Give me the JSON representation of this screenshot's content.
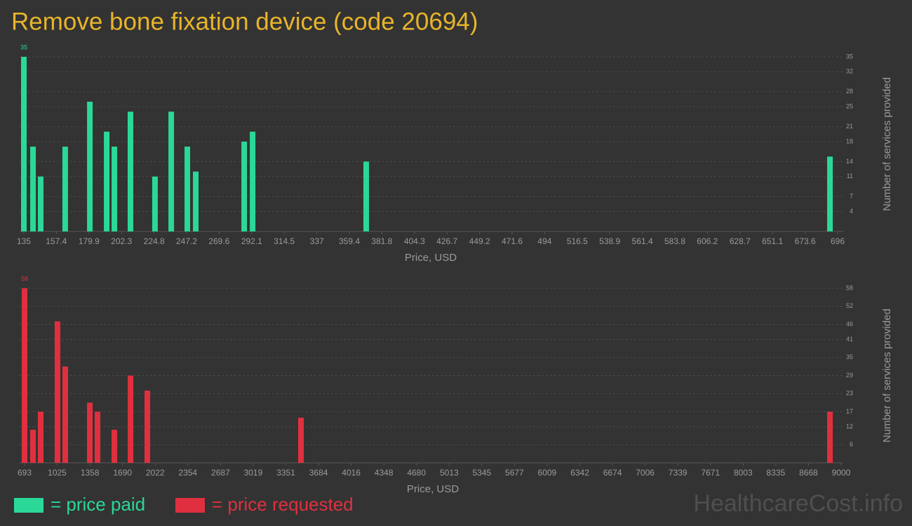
{
  "title": "Remove bone fixation device (code 20694)",
  "watermark": "HealthcareCost.info",
  "chart_data": [
    {
      "type": "bar",
      "x": [
        135,
        141.3,
        146.6,
        163.5,
        180.5,
        192.1,
        197.4,
        208.5,
        225.4,
        236.6,
        247.7,
        253.5,
        286.9,
        292.7,
        371,
        690.7
      ],
      "series": [
        {
          "name": "= price paid",
          "color": "#2ad897",
          "values": [
            35,
            17,
            11,
            17,
            26,
            20,
            17,
            24,
            11,
            24,
            17,
            12,
            18,
            20,
            14,
            15
          ]
        }
      ],
      "xlim": [
        135,
        696
      ],
      "xticks": [
        135,
        157.4,
        179.9,
        202.3,
        224.8,
        247.2,
        269.6,
        292.1,
        314.5,
        337,
        359.4,
        381.8,
        404.3,
        426.7,
        449.2,
        471.6,
        494,
        516.5,
        538.9,
        561.4,
        583.8,
        606.2,
        628.7,
        651.1,
        673.6,
        696
      ],
      "ylim": [
        0,
        35
      ],
      "yticks": [
        4,
        7,
        11,
        14,
        18,
        21,
        25,
        28,
        32,
        35
      ],
      "x_label": "Price, USD",
      "y_label": "Number of services provided",
      "grid": true
    },
    {
      "type": "bar",
      "x": [
        693,
        778.6,
        857,
        1028,
        1107,
        1357,
        1435,
        1607,
        1771,
        1942,
        3505,
        8886
      ],
      "series": [
        {
          "name": "= price requested",
          "color": "#e0303f",
          "values": [
            58,
            11,
            17,
            47,
            32,
            20,
            17,
            11,
            29,
            24,
            15,
            17
          ]
        }
      ],
      "xlim": [
        693,
        9000
      ],
      "xticks": [
        693,
        1025,
        1358,
        1690,
        2022,
        2354,
        2687,
        3019,
        3351,
        3684,
        4016,
        4348,
        4680,
        5013,
        5345,
        5677,
        6009,
        6342,
        6674,
        7006,
        7339,
        7671,
        8003,
        8335,
        8668,
        9000
      ],
      "ylim": [
        0,
        58
      ],
      "yticks": [
        6,
        12,
        17,
        23,
        29,
        35,
        41,
        46,
        52,
        58
      ],
      "x_label": "Price, USD",
      "y_label": "Number of services provided",
      "grid": true
    }
  ]
}
